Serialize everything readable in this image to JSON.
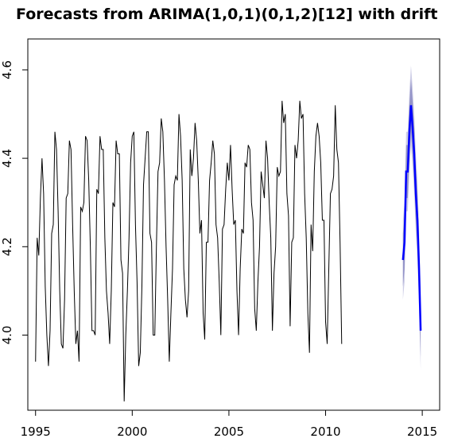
{
  "chart_data": {
    "type": "line",
    "title": "Forecasts from ARIMA(1,0,1)(0,1,2)[12] with drift",
    "xlabel": "",
    "ylabel": "",
    "xlim": [
      1994.6,
      2015.9
    ],
    "ylim": [
      3.83,
      4.67
    ],
    "x_ticks": [
      1995,
      2000,
      2005,
      2010,
      2015
    ],
    "x_tick_labels": [
      "1995",
      "2000",
      "2005",
      "2010",
      "2015"
    ],
    "y_ticks": [
      4.0,
      4.2,
      4.4,
      4.6
    ],
    "y_tick_labels": [
      "4.0",
      "4.2",
      "4.4",
      "4.6"
    ],
    "grid": false,
    "legend": "none",
    "series": [
      {
        "role": "historical",
        "color": "#000000",
        "x_start": 1995.0,
        "x_step": 0.08333,
        "values": [
          3.94,
          4.22,
          4.18,
          4.31,
          4.4,
          4.32,
          4.11,
          4.0,
          3.93,
          4.01,
          4.23,
          4.25,
          4.46,
          4.42,
          4.28,
          4.1,
          3.98,
          3.97,
          4.08,
          4.31,
          4.32,
          4.44,
          4.42,
          4.25,
          4.1,
          3.98,
          4.01,
          3.94,
          4.29,
          4.28,
          4.3,
          4.45,
          4.44,
          4.35,
          4.2,
          4.01,
          4.01,
          4.0,
          4.33,
          4.32,
          4.45,
          4.42,
          4.42,
          4.22,
          4.1,
          4.05,
          3.98,
          4.1,
          4.3,
          4.29,
          4.44,
          4.41,
          4.41,
          4.17,
          4.14,
          3.85,
          4.0,
          4.1,
          4.22,
          4.39,
          4.45,
          4.46,
          4.25,
          4.12,
          3.93,
          3.96,
          4.11,
          4.34,
          4.4,
          4.46,
          4.46,
          4.23,
          4.21,
          4.0,
          4.0,
          4.2,
          4.37,
          4.39,
          4.49,
          4.46,
          4.35,
          4.2,
          4.08,
          3.94,
          4.05,
          4.15,
          4.34,
          4.36,
          4.35,
          4.5,
          4.45,
          4.35,
          4.15,
          4.08,
          4.04,
          4.1,
          4.42,
          4.36,
          4.4,
          4.48,
          4.44,
          4.35,
          4.23,
          4.26,
          4.05,
          3.99,
          4.21,
          4.21,
          4.35,
          4.39,
          4.44,
          4.41,
          4.25,
          4.22,
          4.12,
          4.0,
          4.24,
          4.25,
          4.33,
          4.39,
          4.35,
          4.43,
          4.33,
          4.25,
          4.26,
          4.1,
          4.0,
          4.15,
          4.24,
          4.23,
          4.39,
          4.38,
          4.43,
          4.42,
          4.3,
          4.26,
          4.06,
          4.01,
          4.12,
          4.2,
          4.37,
          4.34,
          4.31,
          4.44,
          4.4,
          4.3,
          4.22,
          4.01,
          4.14,
          4.2,
          4.38,
          4.36,
          4.37,
          4.53,
          4.48,
          4.5,
          4.32,
          4.27,
          4.02,
          4.21,
          4.22,
          4.43,
          4.4,
          4.44,
          4.53,
          4.49,
          4.5,
          4.32,
          4.22,
          4.05,
          3.96,
          4.25,
          4.19,
          4.37,
          4.45,
          4.48,
          4.45,
          4.39,
          4.26,
          4.26,
          4.03,
          3.98,
          4.15,
          4.32,
          4.33,
          4.36,
          4.52,
          4.42,
          4.39,
          4.21,
          3.98
        ]
      },
      {
        "role": "forecast",
        "color": "#0000ff",
        "x_start": 2014.0,
        "x_step": 0.08333,
        "values": [
          4.17,
          4.21,
          4.37,
          4.37,
          4.46,
          4.52,
          4.47,
          4.41,
          4.32,
          4.26,
          4.15,
          4.01
        ],
        "interval_80": {
          "color": "#9494c8",
          "lower": [
            4.11,
            4.15,
            4.31,
            4.31,
            4.4,
            4.46,
            4.41,
            4.35,
            4.26,
            4.2,
            4.09,
            3.95
          ],
          "upper": [
            4.23,
            4.27,
            4.43,
            4.43,
            4.52,
            4.58,
            4.53,
            4.47,
            4.38,
            4.32,
            4.21,
            4.07
          ]
        },
        "interval_95": {
          "color": "#cdcde6",
          "lower": [
            4.08,
            4.12,
            4.28,
            4.28,
            4.37,
            4.43,
            4.38,
            4.32,
            4.23,
            4.17,
            4.06,
            3.92
          ],
          "upper": [
            4.26,
            4.3,
            4.46,
            4.46,
            4.55,
            4.61,
            4.56,
            4.5,
            4.41,
            4.35,
            4.24,
            4.1
          ]
        }
      }
    ]
  }
}
